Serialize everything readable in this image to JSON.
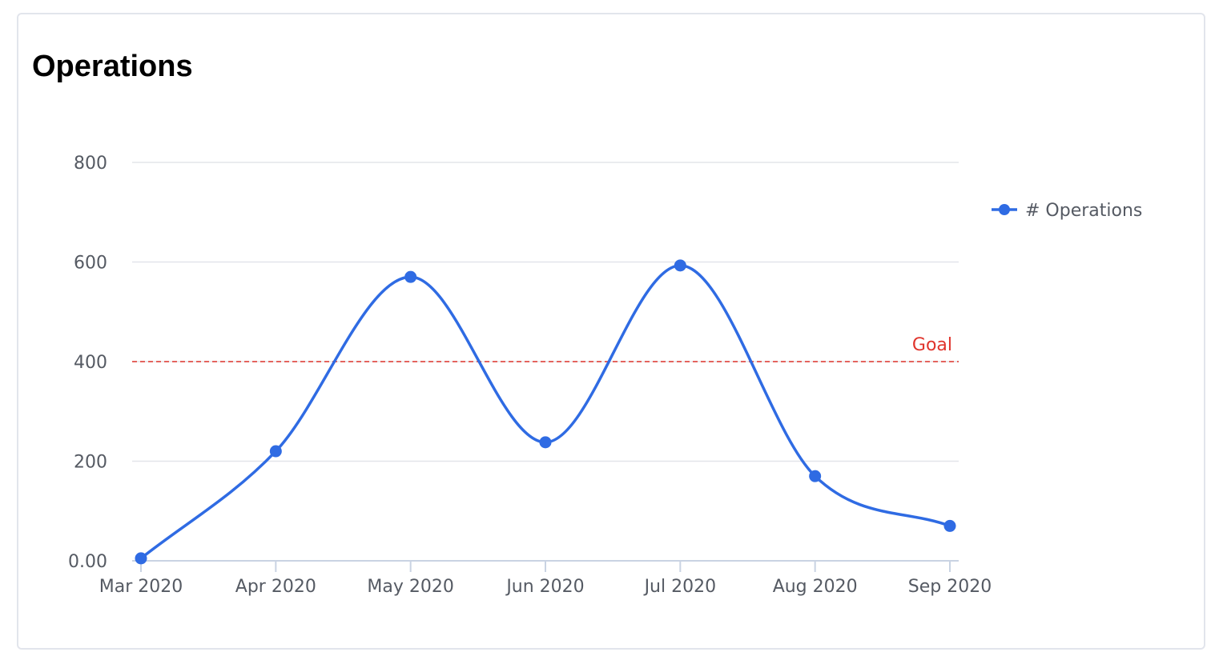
{
  "card": {
    "title": "Operations"
  },
  "chart_data": {
    "type": "line",
    "title": "Operations",
    "categories": [
      "Mar 2020",
      "Apr 2020",
      "May 2020",
      "Jun 2020",
      "Jul 2020",
      "Aug 2020",
      "Sep 2020"
    ],
    "series": [
      {
        "name": "# Operations",
        "values": [
          5,
          220,
          570,
          238,
          593,
          170,
          70
        ],
        "color": "#2f6be3"
      }
    ],
    "y_ticks": [
      "0.00",
      "200",
      "400",
      "600",
      "800"
    ],
    "y_tick_values": [
      0,
      200,
      400,
      600,
      800
    ],
    "ylim": [
      0,
      800
    ],
    "grid": true,
    "curve": "smooth",
    "legend": {
      "position": "right",
      "entries": [
        "# Operations"
      ]
    },
    "reference_line": {
      "label": "Goal",
      "value": 400,
      "color": "#e0342c",
      "style": "dashed"
    }
  }
}
